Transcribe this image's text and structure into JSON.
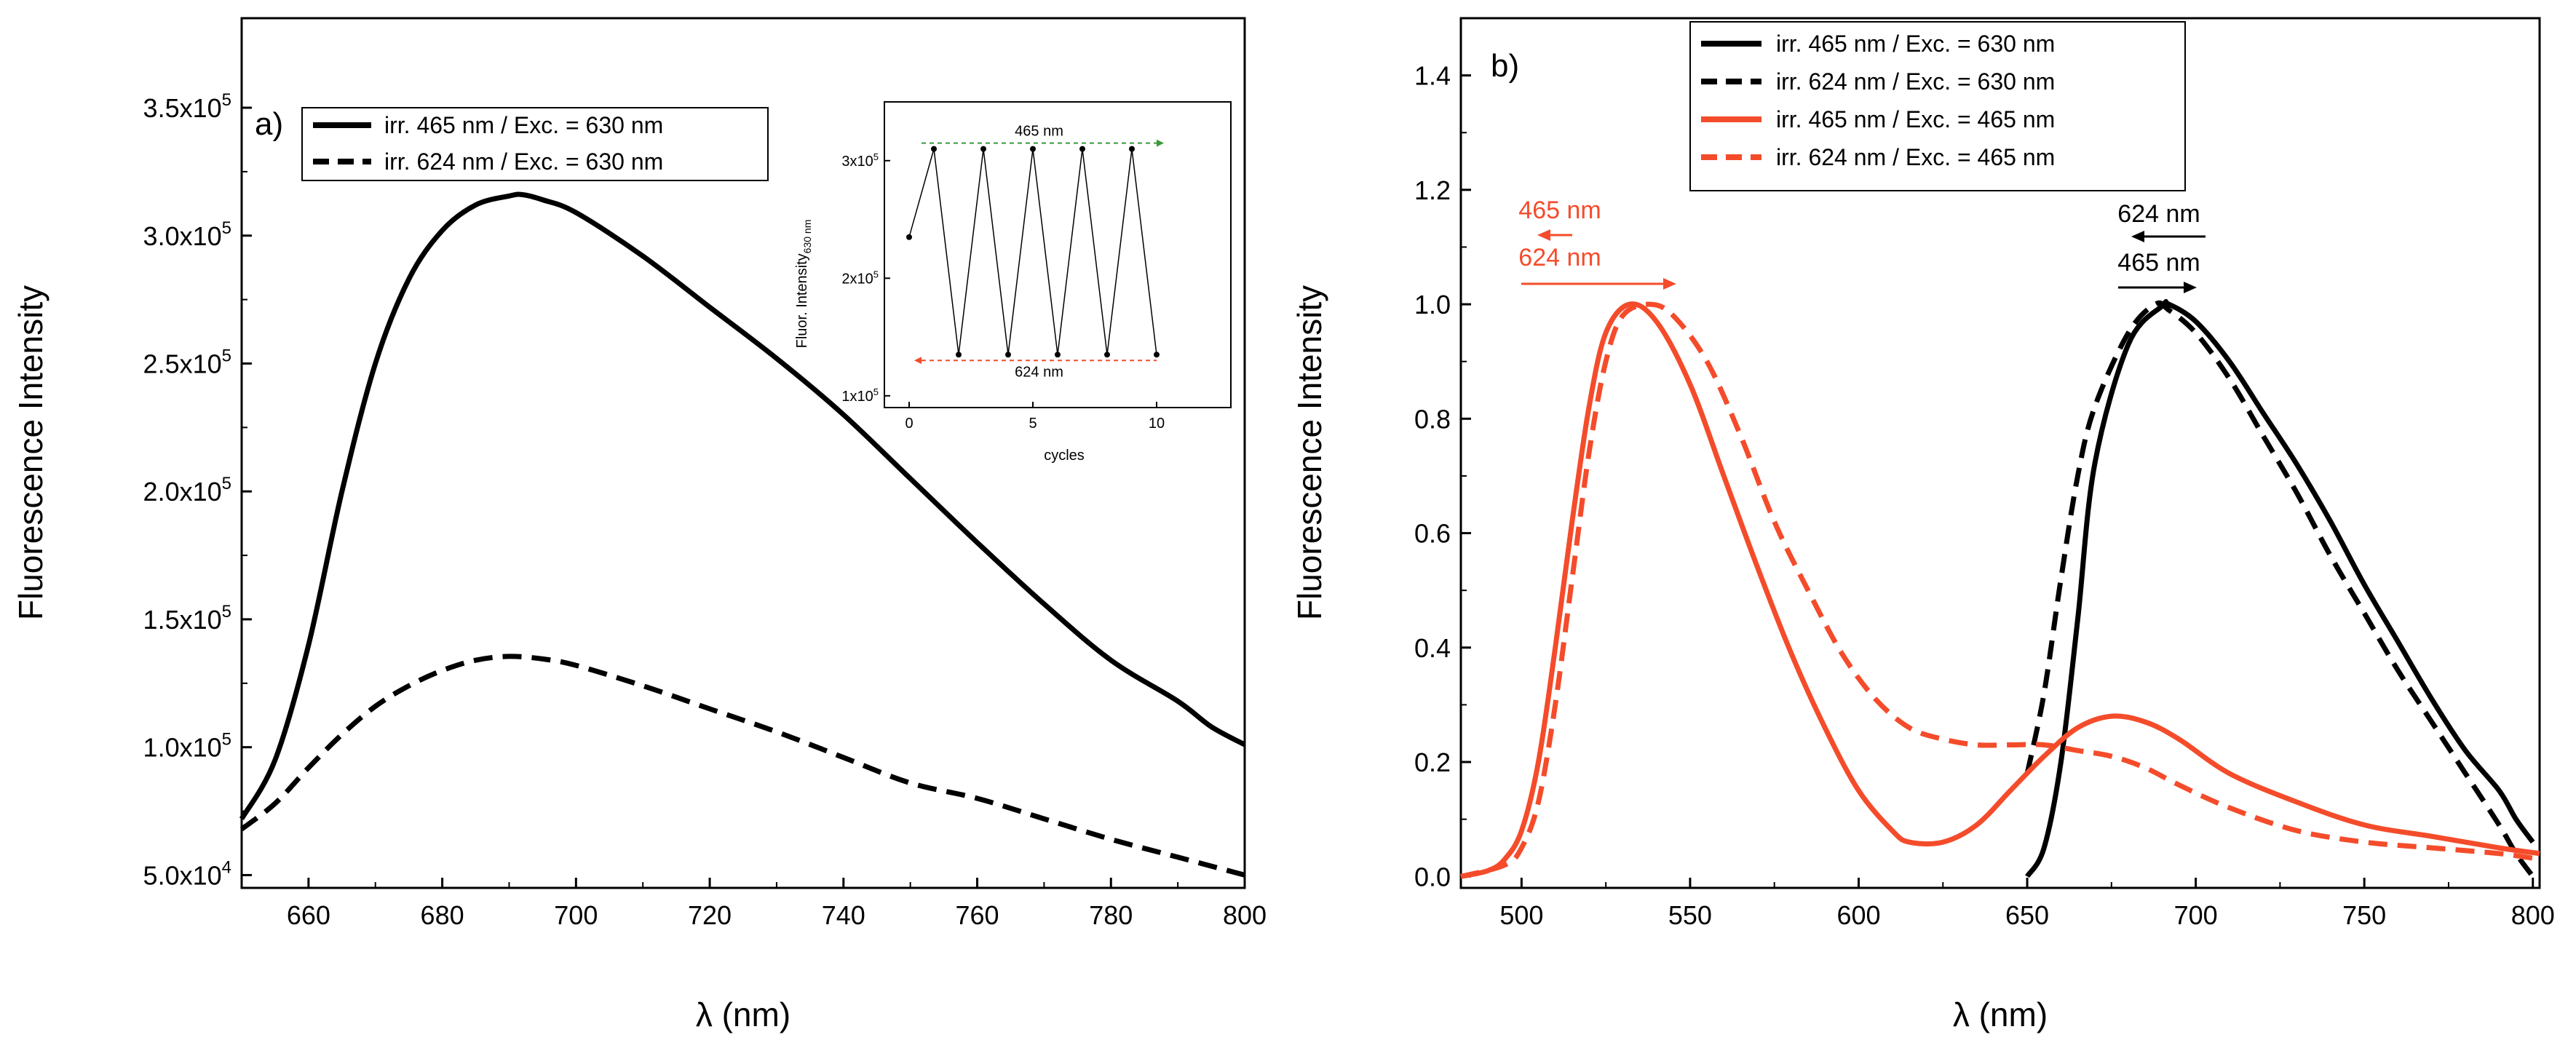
{
  "chart_data": [
    {
      "type": "line",
      "panel": "a)",
      "xlabel": "λ (nm)",
      "ylabel": "Fluorescence Intensity",
      "xlim": [
        650,
        800
      ],
      "ylim": [
        45000,
        385000
      ],
      "xticks": [
        660,
        680,
        700,
        720,
        740,
        760,
        780,
        800
      ],
      "yticks": [
        {
          "value": 50000,
          "mantissa": "5.0x10",
          "exp": "4"
        },
        {
          "value": 100000,
          "mantissa": "1.0x10",
          "exp": "5"
        },
        {
          "value": 150000,
          "mantissa": "1.5x10",
          "exp": "5"
        },
        {
          "value": 200000,
          "mantissa": "2.0x10",
          "exp": "5"
        },
        {
          "value": 250000,
          "mantissa": "2.5x10",
          "exp": "5"
        },
        {
          "value": 300000,
          "mantissa": "3.0x10",
          "exp": "5"
        },
        {
          "value": 350000,
          "mantissa": "3.5x10",
          "exp": "5"
        }
      ],
      "legend_position": "top-left",
      "series": [
        {
          "name": "irr. 465 nm / Exc. = 630 nm",
          "color": "#000000",
          "dash": "solid",
          "x": [
            650,
            655,
            660,
            665,
            670,
            675,
            680,
            685,
            690,
            692,
            695,
            700,
            710,
            720,
            730,
            740,
            750,
            760,
            770,
            780,
            790,
            795,
            800
          ],
          "y": [
            72000,
            95000,
            140000,
            200000,
            250000,
            283000,
            302000,
            312000,
            315500,
            316000,
            314000,
            309000,
            292000,
            272000,
            252000,
            230000,
            205000,
            180000,
            156000,
            134000,
            118000,
            108000,
            101000
          ]
        },
        {
          "name": "irr. 624 nm / Exc. = 630 nm",
          "color": "#000000",
          "dash": "dashed",
          "x": [
            650,
            655,
            660,
            665,
            670,
            675,
            680,
            685,
            690,
            695,
            700,
            710,
            720,
            730,
            740,
            750,
            760,
            770,
            780,
            790,
            800
          ],
          "y": [
            68000,
            78000,
            92000,
            105000,
            116000,
            124000,
            130000,
            134000,
            135500,
            134500,
            132000,
            124000,
            115000,
            106000,
            96000,
            86000,
            80000,
            72000,
            64000,
            57000,
            50000
          ]
        }
      ],
      "inset": {
        "xlabel": "cycles",
        "ylabel": "Fluor. Intensity",
        "ylabel_sub": "630 nm",
        "xlim": [
          -1,
          13
        ],
        "ylim": [
          90000,
          350000
        ],
        "xticks": [
          0,
          5,
          10
        ],
        "yticks": [
          {
            "value": 100000,
            "mantissa": "1x10",
            "exp": "5"
          },
          {
            "value": 200000,
            "mantissa": "2x10",
            "exp": "5"
          },
          {
            "value": 300000,
            "mantissa": "3x10",
            "exp": "5"
          }
        ],
        "top_label": "465 nm",
        "bottom_label": "624 nm",
        "top_color": "#3a9a3a",
        "bottom_color": "#f44c2b",
        "x": [
          0,
          1,
          2,
          3,
          4,
          5,
          6,
          7,
          8,
          9,
          10
        ],
        "y": [
          235000,
          310000,
          135000,
          310000,
          135000,
          310000,
          135000,
          310000,
          135000,
          310000,
          135000
        ]
      }
    },
    {
      "type": "line",
      "panel": "b)",
      "xlabel": "λ (nm)",
      "ylabel": "Fluorescence Intensity",
      "xlim": [
        482,
        802
      ],
      "ylim": [
        -0.02,
        1.5
      ],
      "xticks": [
        500,
        550,
        600,
        650,
        700,
        750,
        800
      ],
      "yticks": [
        {
          "value": 0.0,
          "label": "0.0"
        },
        {
          "value": 0.2,
          "label": "0.2"
        },
        {
          "value": 0.4,
          "label": "0.4"
        },
        {
          "value": 0.6,
          "label": "0.6"
        },
        {
          "value": 0.8,
          "label": "0.8"
        },
        {
          "value": 1.0,
          "label": "1.0"
        },
        {
          "value": 1.2,
          "label": "1.2"
        },
        {
          "value": 1.4,
          "label": "1.4"
        }
      ],
      "legend_position": "top-center",
      "series": [
        {
          "name": "irr. 465 nm / Exc. = 630 nm",
          "color": "#000000",
          "dash": "solid",
          "x": [
            650,
            655,
            660,
            665,
            670,
            680,
            690,
            692,
            700,
            710,
            720,
            730,
            740,
            750,
            760,
            770,
            780,
            790,
            795,
            800
          ],
          "y": [
            0.0,
            0.05,
            0.2,
            0.45,
            0.72,
            0.93,
            0.997,
            1.0,
            0.97,
            0.9,
            0.81,
            0.72,
            0.62,
            0.51,
            0.41,
            0.31,
            0.22,
            0.15,
            0.1,
            0.06
          ]
        },
        {
          "name": "irr. 624 nm / Exc. = 630 nm",
          "color": "#000000",
          "dash": "dashed",
          "x": [
            650,
            655,
            660,
            665,
            670,
            680,
            688,
            692,
            700,
            710,
            720,
            730,
            740,
            750,
            760,
            770,
            780,
            790,
            795,
            800
          ],
          "y": [
            0.18,
            0.32,
            0.52,
            0.7,
            0.82,
            0.95,
            1.0,
            0.99,
            0.95,
            0.87,
            0.77,
            0.67,
            0.56,
            0.46,
            0.36,
            0.27,
            0.18,
            0.09,
            0.04,
            0.0
          ]
        },
        {
          "name": "irr. 465 nm / Exc. = 465 nm",
          "color": "#f44c2b",
          "dash": "solid",
          "x": [
            482,
            490,
            495,
            500,
            505,
            510,
            515,
            520,
            525,
            532,
            540,
            550,
            560,
            570,
            580,
            590,
            600,
            610,
            615,
            625,
            635,
            645,
            655,
            665,
            675,
            685,
            695,
            710,
            730,
            750,
            770,
            790,
            802
          ],
          "y": [
            0.0,
            0.01,
            0.03,
            0.08,
            0.2,
            0.4,
            0.62,
            0.82,
            0.95,
            1.0,
            0.97,
            0.86,
            0.7,
            0.54,
            0.39,
            0.26,
            0.15,
            0.08,
            0.06,
            0.06,
            0.09,
            0.15,
            0.21,
            0.26,
            0.28,
            0.27,
            0.24,
            0.18,
            0.13,
            0.09,
            0.07,
            0.05,
            0.04
          ]
        },
        {
          "name": "irr. 624 nm / Exc. = 465 nm",
          "color": "#f44c2b",
          "dash": "dashed",
          "x": [
            482,
            495,
            500,
            505,
            510,
            515,
            520,
            525,
            530,
            538,
            545,
            555,
            565,
            575,
            585,
            595,
            605,
            615,
            625,
            635,
            645,
            655,
            665,
            675,
            685,
            695,
            710,
            730,
            750,
            770,
            790,
            802
          ],
          "y": [
            0.0,
            0.02,
            0.05,
            0.13,
            0.3,
            0.52,
            0.74,
            0.9,
            0.98,
            1.0,
            0.98,
            0.9,
            0.77,
            0.62,
            0.5,
            0.39,
            0.31,
            0.26,
            0.24,
            0.23,
            0.23,
            0.23,
            0.22,
            0.21,
            0.19,
            0.16,
            0.12,
            0.08,
            0.06,
            0.05,
            0.04,
            0.03
          ]
        }
      ],
      "annotations": [
        {
          "text": "465 nm",
          "color": "#f44c2b",
          "arrow": "left"
        },
        {
          "text": "624 nm",
          "color": "#f44c2b",
          "arrow": "right"
        },
        {
          "text": "624 nm",
          "color": "#000000",
          "arrow": "left"
        },
        {
          "text": "465 nm",
          "color": "#000000",
          "arrow": "right"
        }
      ]
    }
  ]
}
